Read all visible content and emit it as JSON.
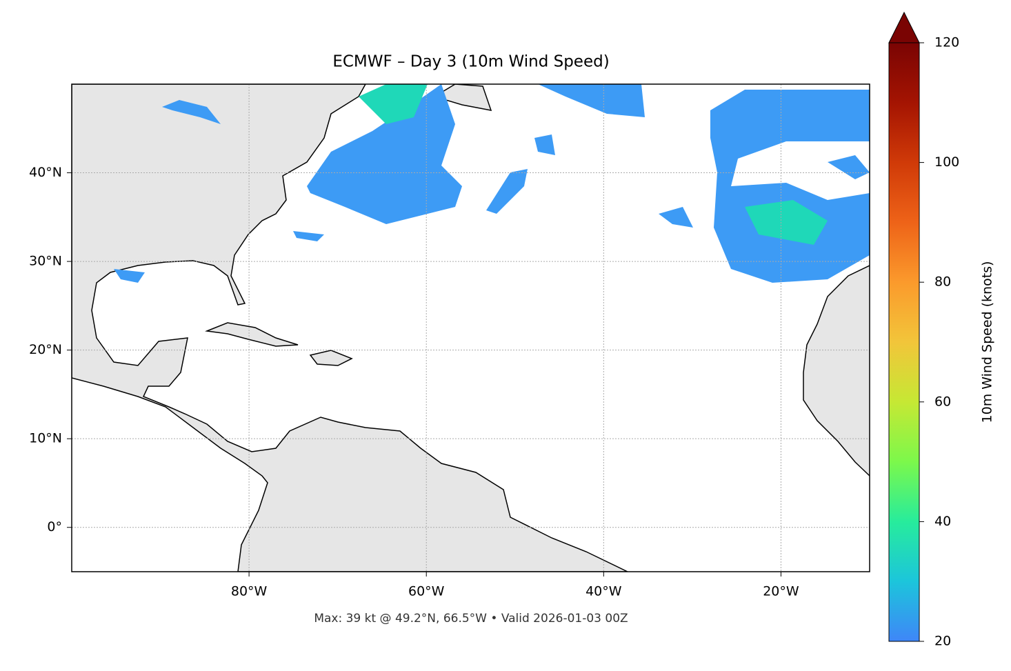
{
  "map": {
    "type": "map",
    "title": "ECMWF – Day 3 (10m Wind Speed)",
    "footer": "Max: 39 kt @ 49.2°N, 66.5°W • Valid 2026-01-03 00Z",
    "xlim": [
      -100,
      -10
    ],
    "ylim": [
      -5,
      50
    ],
    "xticks": [
      {
        "value": -80,
        "label": "80°W"
      },
      {
        "value": -60,
        "label": "60°W"
      },
      {
        "value": -40,
        "label": "40°W"
      },
      {
        "value": -20,
        "label": "20°W"
      }
    ],
    "yticks": [
      {
        "value": 0,
        "label": "0°"
      },
      {
        "value": 10,
        "label": "10°N"
      },
      {
        "value": 20,
        "label": "20°N"
      },
      {
        "value": 30,
        "label": "30°N"
      },
      {
        "value": 40,
        "label": "40°N"
      }
    ],
    "grid": true,
    "colorbar": {
      "label": "10m Wind Speed (knots)",
      "lim": [
        20,
        120
      ],
      "ticks": [
        20,
        40,
        60,
        80,
        100,
        120
      ],
      "colormap": "turbo",
      "extend": "max"
    }
  }
}
